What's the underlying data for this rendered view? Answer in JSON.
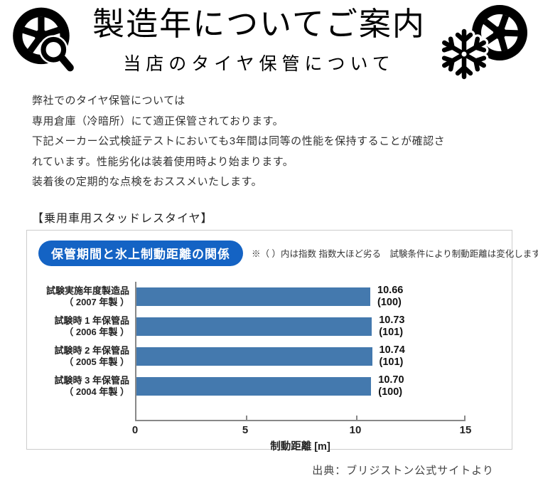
{
  "page": {
    "title": "製造年についてご案内",
    "subtitle": "当店のタイヤ保管について"
  },
  "icons": {
    "left": "tire-with-magnifier",
    "right": "tire-with-snowflake"
  },
  "intro": {
    "lines": [
      "弊社でのタイヤ保管については",
      "専用倉庫（冷暗所）にて適正保管されております。",
      "下記メーカー公式検証テストにおいても3年間は同等の性能を保持することが確認さ",
      "れています。性能劣化は装着使用時より始まります。",
      "装着後の定期的な点検をおススメいたします。"
    ]
  },
  "section_heading": "【乗用車用スタッドレスタイヤ】",
  "chart_data": {
    "type": "bar",
    "orientation": "horizontal",
    "title": "保管期間と氷上制動距離の関係",
    "note": "※（ ）内は指数 指数大ほど劣る　試験条件により制動距離は変化します。",
    "rows": [
      {
        "label_line1": "試験実施年度製造品",
        "label_line2": "（ 2007 年製 ）",
        "value": 10.66,
        "value_label": "10.66",
        "index_label": "(100)"
      },
      {
        "label_line1": "試験時 1 年保管品",
        "label_line2": "（ 2006 年製 ）",
        "value": 10.73,
        "value_label": "10.73",
        "index_label": "(101)"
      },
      {
        "label_line1": "試験時 2 年保管品",
        "label_line2": "（ 2005 年製 ）",
        "value": 10.74,
        "value_label": "10.74",
        "index_label": "(101)"
      },
      {
        "label_line1": "試験時 3 年保管品",
        "label_line2": "（ 2004 年製 ）",
        "value": 10.7,
        "value_label": "10.70",
        "index_label": "(100)"
      }
    ],
    "xlabel": "制動距離 [m]",
    "xlim": [
      0,
      15
    ],
    "xticks": [
      0,
      5,
      10,
      15
    ],
    "legend": null,
    "grid": false
  },
  "source": "出典：ブリジストン公式サイトより",
  "colors": {
    "pill_blue": "#1463c4",
    "bar_blue": "#4479ae",
    "axis_gray": "#888888",
    "card_border": "#cccccc"
  }
}
